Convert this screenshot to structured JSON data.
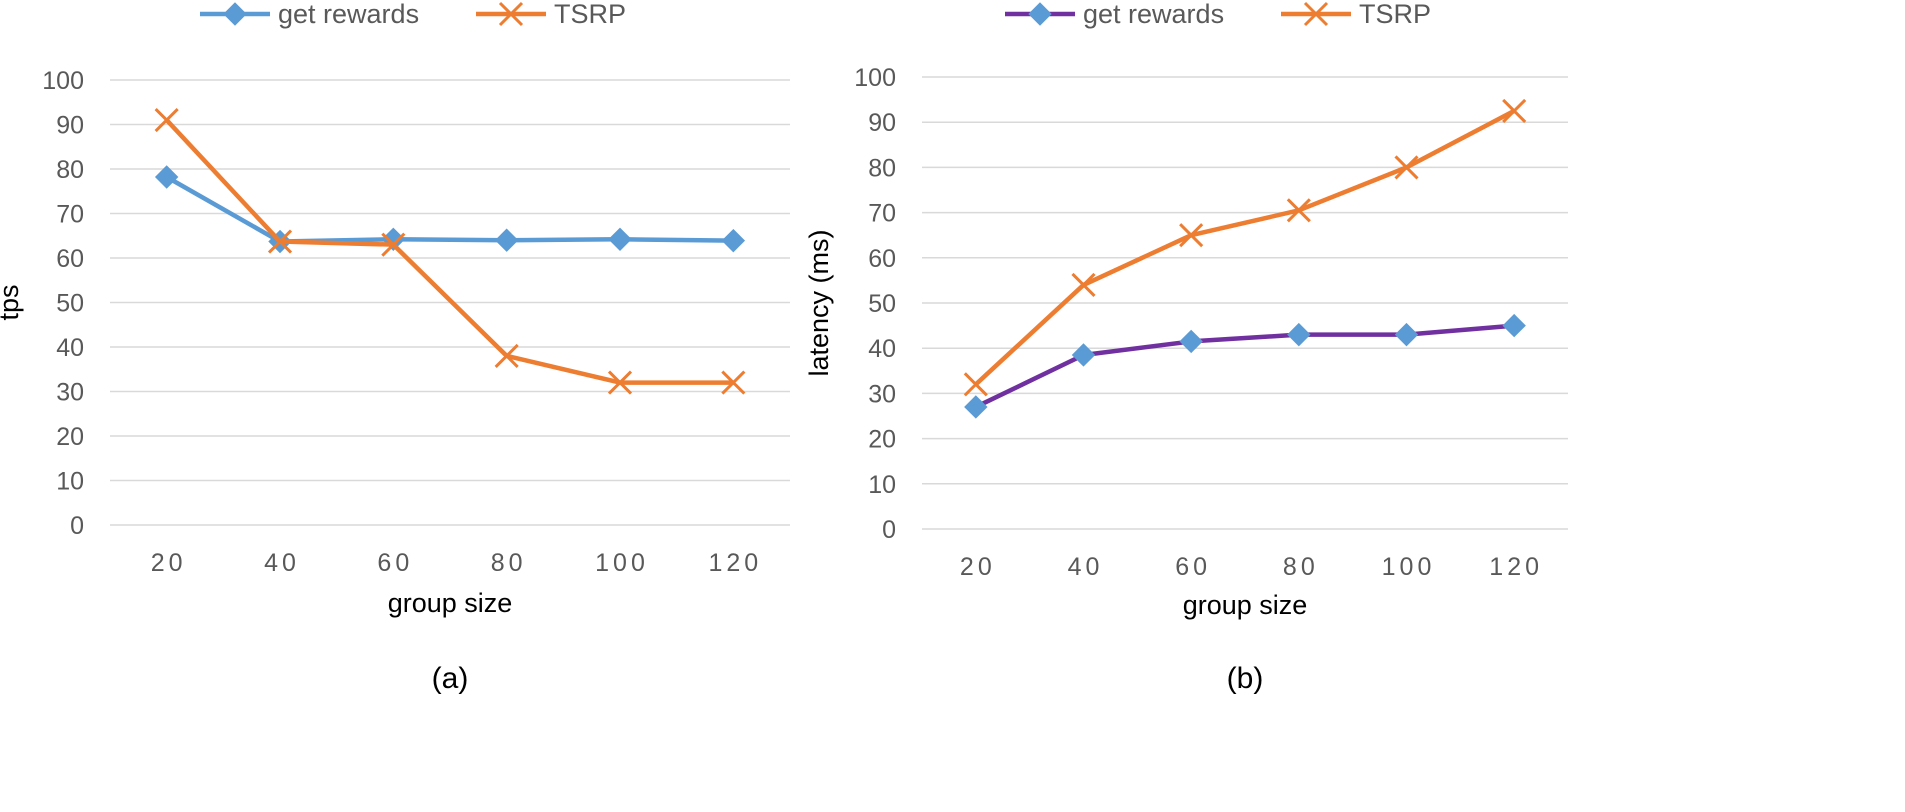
{
  "chart_data": [
    {
      "type": "line",
      "panel_label": "(a)",
      "xlabel": "group size",
      "ylabel": "tps",
      "categories": [
        "20",
        "40",
        "60",
        "80",
        "100",
        "120"
      ],
      "ylim": [
        0,
        100
      ],
      "yticks": [
        "0",
        "10",
        "20",
        "30",
        "40",
        "50",
        "60",
        "70",
        "80",
        "90",
        "100"
      ],
      "grid": true,
      "legend_placement": "top",
      "series": [
        {
          "name": "get rewards",
          "color": "#5B9BD5",
          "marker": "diamond",
          "values": [
            78.2,
            63.7,
            64.2,
            64.0,
            64.2,
            63.9
          ]
        },
        {
          "name": "TSRP",
          "color": "#ED7D31",
          "marker": "x",
          "values": [
            91.0,
            63.7,
            63.0,
            38.0,
            32.0,
            32.0
          ]
        }
      ]
    },
    {
      "type": "line",
      "panel_label": "(b)",
      "xlabel": "group size",
      "ylabel": "latency (ms)",
      "categories": [
        "20",
        "40",
        "60",
        "80",
        "100",
        "120"
      ],
      "ylim": [
        0,
        100
      ],
      "yticks": [
        "0",
        "10",
        "20",
        "30",
        "40",
        "50",
        "60",
        "70",
        "80",
        "90",
        "100"
      ],
      "grid": true,
      "legend_placement": "top",
      "series": [
        {
          "name": "get rewards",
          "color": "#7030A0",
          "marker": "diamond",
          "marker_color": "#5B9BD5",
          "values": [
            27.0,
            38.5,
            41.5,
            43.0,
            43.0,
            45.0
          ]
        },
        {
          "name": "TSRP",
          "color": "#ED7D31",
          "marker": "x",
          "values": [
            32.0,
            54.0,
            65.0,
            70.5,
            80.0,
            92.5
          ]
        }
      ]
    }
  ]
}
